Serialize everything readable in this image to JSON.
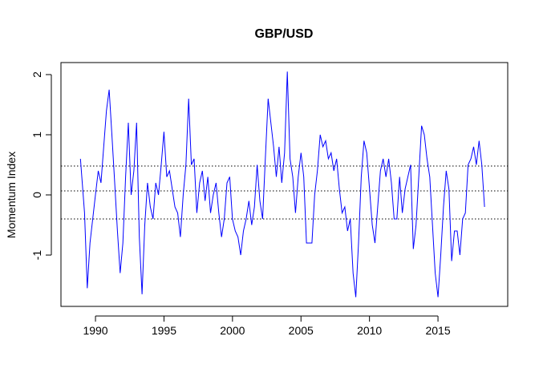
{
  "chart_data": {
    "type": "line",
    "title": "GBP/USD",
    "y_label": "Momentum Index",
    "x": [
      1988.9,
      1989.0,
      1989.2,
      1989.4,
      1989.6,
      1989.8,
      1990.0,
      1990.2,
      1990.4,
      1990.6,
      1990.8,
      1991.0,
      1991.2,
      1991.4,
      1991.6,
      1991.8,
      1992.0,
      1992.2,
      1992.4,
      1992.6,
      1992.8,
      1993.0,
      1993.2,
      1993.4,
      1993.6,
      1993.8,
      1994.0,
      1994.2,
      1994.4,
      1994.6,
      1994.8,
      1995.0,
      1995.2,
      1995.4,
      1995.6,
      1995.8,
      1996.0,
      1996.2,
      1996.4,
      1996.6,
      1996.8,
      1997.0,
      1997.2,
      1997.4,
      1997.6,
      1997.8,
      1998.0,
      1998.2,
      1998.4,
      1998.6,
      1998.8,
      1999.0,
      1999.2,
      1999.4,
      1999.6,
      1999.8,
      2000.0,
      2000.2,
      2000.4,
      2000.6,
      2000.8,
      2001.0,
      2001.2,
      2001.4,
      2001.6,
      2001.8,
      2002.0,
      2002.2,
      2002.4,
      2002.6,
      2002.8,
      2003.0,
      2003.2,
      2003.4,
      2003.6,
      2003.8,
      2004.0,
      2004.2,
      2004.4,
      2004.6,
      2004.8,
      2005.0,
      2005.2,
      2005.4,
      2005.6,
      2005.8,
      2006.0,
      2006.2,
      2006.4,
      2006.6,
      2006.8,
      2007.0,
      2007.2,
      2007.4,
      2007.6,
      2007.8,
      2008.0,
      2008.2,
      2008.4,
      2008.6,
      2008.8,
      2009.0,
      2009.2,
      2009.4,
      2009.6,
      2009.8,
      2010.0,
      2010.2,
      2010.4,
      2010.6,
      2010.8,
      2011.0,
      2011.2,
      2011.4,
      2011.6,
      2011.8,
      2012.0,
      2012.2,
      2012.4,
      2012.6,
      2012.8,
      2013.0,
      2013.2,
      2013.4,
      2013.6,
      2013.8,
      2014.0,
      2014.2,
      2014.4,
      2014.6,
      2014.8,
      2015.0,
      2015.2,
      2015.4,
      2015.6,
      2015.8,
      2016.0,
      2016.2,
      2016.4,
      2016.6,
      2016.8,
      2017.0,
      2017.2,
      2017.4,
      2017.6,
      2017.8,
      2018.0,
      2018.2,
      2018.4
    ],
    "values": [
      0.6,
      0.3,
      -0.3,
      -1.55,
      -0.8,
      -0.4,
      0.0,
      0.4,
      0.2,
      0.8,
      1.4,
      1.75,
      1.0,
      0.2,
      -0.6,
      -1.3,
      -0.8,
      0.3,
      1.2,
      0.0,
      0.4,
      1.2,
      -0.7,
      -1.65,
      -0.5,
      0.2,
      -0.2,
      -0.4,
      0.2,
      0.0,
      0.5,
      1.05,
      0.3,
      0.4,
      0.1,
      -0.2,
      -0.3,
      -0.7,
      0.0,
      0.5,
      1.6,
      0.5,
      0.6,
      -0.3,
      0.2,
      0.4,
      -0.1,
      0.3,
      -0.3,
      0.0,
      0.2,
      -0.3,
      -0.7,
      -0.4,
      0.2,
      0.3,
      -0.4,
      -0.6,
      -0.7,
      -1.0,
      -0.6,
      -0.4,
      -0.1,
      -0.5,
      -0.2,
      0.5,
      -0.1,
      -0.4,
      0.6,
      1.6,
      1.2,
      0.8,
      0.3,
      0.8,
      0.2,
      0.7,
      2.05,
      0.6,
      0.3,
      -0.3,
      0.3,
      0.7,
      0.3,
      -0.8,
      -0.8,
      -0.8,
      0.0,
      0.4,
      1.0,
      0.8,
      0.9,
      0.6,
      0.7,
      0.4,
      0.6,
      0.1,
      -0.3,
      -0.2,
      -0.6,
      -0.4,
      -1.3,
      -1.7,
      -0.8,
      0.3,
      0.9,
      0.7,
      0.1,
      -0.5,
      -0.8,
      -0.2,
      0.4,
      0.6,
      0.3,
      0.6,
      0.2,
      -0.4,
      -0.4,
      0.3,
      -0.3,
      0.1,
      0.3,
      0.5,
      -0.9,
      -0.5,
      0.3,
      1.15,
      1.0,
      0.6,
      0.3,
      -0.5,
      -1.3,
      -1.7,
      -1.0,
      -0.2,
      0.4,
      0.1,
      -1.1,
      -0.6,
      -0.6,
      -1.0,
      -0.4,
      -0.3,
      0.5,
      0.6,
      0.8,
      0.5,
      0.9,
      0.5,
      -0.2
    ],
    "color": "#0000ff",
    "hlines": [
      0.48,
      0.067,
      -0.4
    ],
    "xlim": [
      1987.48,
      2020.09
    ],
    "xticks": [
      1990,
      1995,
      2000,
      2005,
      2010,
      2015
    ],
    "ylim": [
      -1.853,
      2.2
    ],
    "yticks": [
      -1,
      0,
      1,
      2
    ]
  }
}
